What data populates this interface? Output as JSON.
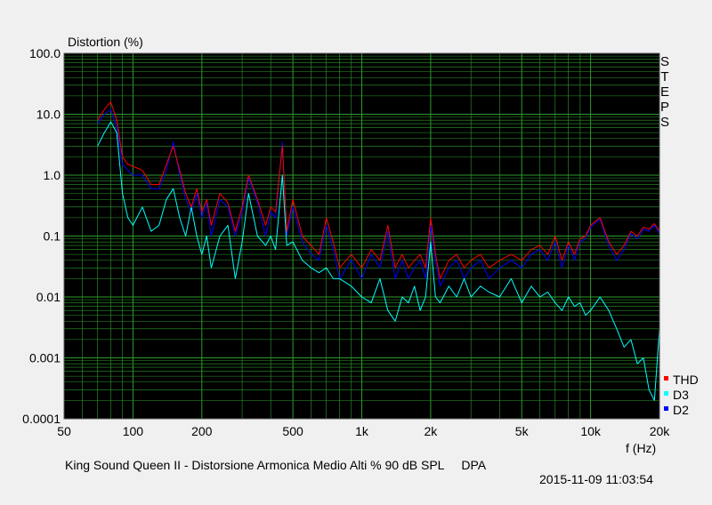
{
  "chart_data": {
    "type": "line",
    "ylabel": "Distortion (%)",
    "xlabel": "f (Hz)",
    "x_scale": "log",
    "y_scale": "log",
    "xlim": [
      50,
      20000
    ],
    "ylim": [
      0.0001,
      100
    ],
    "x_ticks": [
      {
        "value": 50,
        "label": "50"
      },
      {
        "value": 100,
        "label": "100"
      },
      {
        "value": 200,
        "label": "200"
      },
      {
        "value": 500,
        "label": "500"
      },
      {
        "value": 1000,
        "label": "1k"
      },
      {
        "value": 2000,
        "label": "2k"
      },
      {
        "value": 5000,
        "label": "5k"
      },
      {
        "value": 10000,
        "label": "10k"
      },
      {
        "value": 20000,
        "label": "20k"
      }
    ],
    "y_ticks": [
      {
        "value": 100,
        "label": "100.0"
      },
      {
        "value": 10,
        "label": "10.0"
      },
      {
        "value": 1,
        "label": "1.0"
      },
      {
        "value": 0.1,
        "label": "0.1"
      },
      {
        "value": 0.01,
        "label": "0.01"
      },
      {
        "value": 0.001,
        "label": "0.001"
      },
      {
        "value": 0.0001,
        "label": "0.0001"
      }
    ],
    "grid": true,
    "legend_position": "bottom-right",
    "side_label": "STEPS",
    "background_color": "#000000",
    "grid_color": "#2e9a2e",
    "series": [
      {
        "name": "THD",
        "color": "#ff0000",
        "x": [
          70,
          75,
          80,
          85,
          90,
          95,
          100,
          110,
          120,
          130,
          140,
          150,
          160,
          170,
          180,
          190,
          200,
          210,
          220,
          240,
          260,
          280,
          300,
          320,
          350,
          380,
          400,
          420,
          450,
          470,
          500,
          550,
          600,
          650,
          700,
          750,
          800,
          900,
          1000,
          1100,
          1200,
          1300,
          1400,
          1500,
          1600,
          1700,
          1800,
          1900,
          2000,
          2100,
          2200,
          2400,
          2600,
          2800,
          3000,
          3300,
          3600,
          4000,
          4500,
          5000,
          5500,
          6000,
          6500,
          7000,
          7500,
          8000,
          8500,
          9000,
          9500,
          10000,
          11000,
          12000,
          13000,
          14000,
          15000,
          16000,
          17000,
          18000,
          19000,
          20000
        ],
        "y": [
          8,
          12,
          16,
          8,
          2,
          1.5,
          1.4,
          1.2,
          0.7,
          0.7,
          1.5,
          3,
          1.2,
          0.5,
          0.3,
          0.6,
          0.25,
          0.4,
          0.15,
          0.5,
          0.35,
          0.12,
          0.3,
          1.0,
          0.4,
          0.15,
          0.3,
          0.25,
          3.0,
          0.12,
          0.4,
          0.1,
          0.07,
          0.05,
          0.2,
          0.08,
          0.03,
          0.05,
          0.03,
          0.06,
          0.04,
          0.15,
          0.03,
          0.05,
          0.03,
          0.04,
          0.05,
          0.03,
          0.2,
          0.05,
          0.02,
          0.04,
          0.05,
          0.03,
          0.04,
          0.05,
          0.03,
          0.04,
          0.05,
          0.04,
          0.06,
          0.07,
          0.05,
          0.1,
          0.04,
          0.08,
          0.05,
          0.09,
          0.1,
          0.15,
          0.2,
          0.08,
          0.05,
          0.07,
          0.12,
          0.1,
          0.14,
          0.13,
          0.16,
          0.12
        ]
      },
      {
        "name": "D3",
        "color": "#00ffff",
        "x": [
          70,
          75,
          80,
          85,
          90,
          95,
          100,
          110,
          120,
          130,
          140,
          150,
          160,
          170,
          180,
          190,
          200,
          210,
          220,
          240,
          260,
          280,
          300,
          320,
          350,
          380,
          400,
          420,
          450,
          470,
          500,
          550,
          600,
          650,
          700,
          750,
          800,
          900,
          1000,
          1100,
          1200,
          1300,
          1400,
          1500,
          1600,
          1700,
          1800,
          1900,
          2000,
          2100,
          2200,
          2400,
          2600,
          2800,
          3000,
          3300,
          3600,
          4000,
          4500,
          5000,
          5500,
          6000,
          6500,
          7000,
          7500,
          8000,
          8500,
          9000,
          9500,
          10000,
          11000,
          12000,
          13000,
          14000,
          15000,
          16000,
          17000,
          18000,
          19000,
          20000
        ],
        "y": [
          3,
          5,
          7.5,
          5,
          0.5,
          0.2,
          0.15,
          0.3,
          0.12,
          0.15,
          0.4,
          0.6,
          0.2,
          0.1,
          0.3,
          0.1,
          0.05,
          0.1,
          0.03,
          0.1,
          0.15,
          0.02,
          0.08,
          0.5,
          0.1,
          0.07,
          0.1,
          0.06,
          1.0,
          0.07,
          0.08,
          0.04,
          0.03,
          0.025,
          0.03,
          0.02,
          0.02,
          0.015,
          0.01,
          0.008,
          0.02,
          0.006,
          0.004,
          0.01,
          0.008,
          0.015,
          0.006,
          0.01,
          0.08,
          0.01,
          0.008,
          0.015,
          0.01,
          0.02,
          0.01,
          0.015,
          0.012,
          0.01,
          0.02,
          0.008,
          0.015,
          0.01,
          0.012,
          0.008,
          0.006,
          0.01,
          0.007,
          0.008,
          0.005,
          0.006,
          0.01,
          0.006,
          0.003,
          0.0015,
          0.002,
          0.0008,
          0.001,
          0.0003,
          0.0002,
          0.003
        ]
      },
      {
        "name": "D2",
        "color": "#0000ff",
        "x": [
          70,
          75,
          80,
          85,
          90,
          95,
          100,
          110,
          120,
          130,
          140,
          150,
          160,
          170,
          180,
          190,
          200,
          210,
          220,
          240,
          260,
          280,
          300,
          320,
          350,
          380,
          400,
          420,
          450,
          470,
          500,
          550,
          600,
          650,
          700,
          750,
          800,
          900,
          1000,
          1100,
          1200,
          1300,
          1400,
          1500,
          1600,
          1700,
          1800,
          1900,
          2000,
          2100,
          2200,
          2400,
          2600,
          2800,
          3000,
          3300,
          3600,
          4000,
          4500,
          5000,
          5500,
          6000,
          6500,
          7000,
          7500,
          8000,
          8500,
          9000,
          9500,
          10000,
          11000,
          12000,
          13000,
          14000,
          15000,
          16000,
          17000,
          18000,
          19000,
          20000
        ],
        "y": [
          7,
          10,
          12,
          6,
          1.5,
          1.2,
          1.0,
          1.0,
          0.6,
          0.6,
          1.2,
          3.5,
          1.0,
          0.4,
          0.25,
          0.5,
          0.2,
          0.35,
          0.1,
          0.4,
          0.3,
          0.1,
          0.25,
          0.9,
          0.35,
          0.1,
          0.25,
          0.2,
          3.5,
          0.1,
          0.3,
          0.08,
          0.05,
          0.04,
          0.15,
          0.06,
          0.02,
          0.04,
          0.02,
          0.05,
          0.03,
          0.12,
          0.02,
          0.04,
          0.02,
          0.03,
          0.04,
          0.02,
          0.15,
          0.04,
          0.015,
          0.03,
          0.04,
          0.02,
          0.03,
          0.04,
          0.02,
          0.03,
          0.04,
          0.03,
          0.05,
          0.06,
          0.04,
          0.08,
          0.03,
          0.07,
          0.04,
          0.08,
          0.09,
          0.14,
          0.19,
          0.07,
          0.04,
          0.06,
          0.11,
          0.09,
          0.13,
          0.12,
          0.15,
          0.11
        ]
      }
    ]
  },
  "footer": {
    "title": "King Sound Queen II - Distorsione Armonica Medio Alti % 90 dB SPL     DPA",
    "timestamp": "2015-11-09 11:03:54"
  }
}
